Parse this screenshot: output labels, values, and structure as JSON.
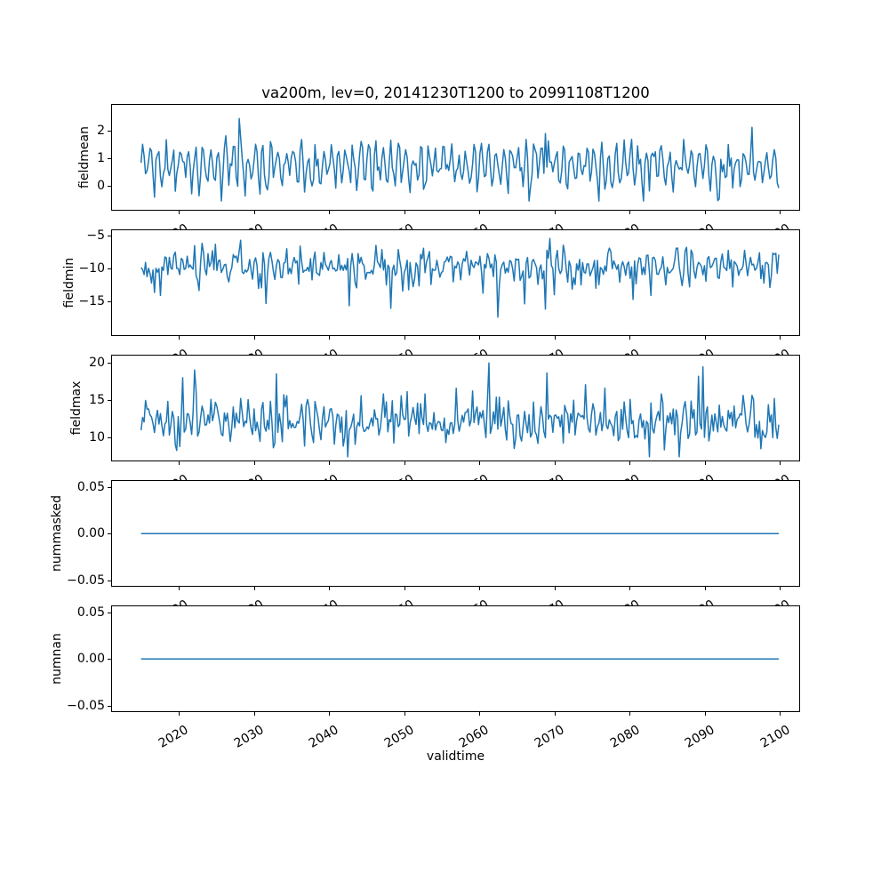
{
  "figure": {
    "title": "va200m, lev=0, 20141230T1200 to 20991108T1200",
    "background": "#ffffff",
    "line_color": "#1f77b4",
    "axis_color": "#000000",
    "text_color": "#000000"
  },
  "x_axis": {
    "label": "validtime",
    "lim": [
      2011.0,
      2102.7
    ],
    "data_start": 2014.99,
    "data_end": 2099.86,
    "ticks": [
      2020,
      2030,
      2040,
      2050,
      2060,
      2070,
      2080,
      2090,
      2100
    ],
    "tick_labels": [
      "2020",
      "2030",
      "2040",
      "2050",
      "2060",
      "2070",
      "2080",
      "2090",
      "2100"
    ],
    "tick_rotation_deg": 30
  },
  "chart_data": [
    {
      "type": "line",
      "ylabel": "fieldmean",
      "ylim": [
        -0.9,
        2.97
      ],
      "yticks": {
        "values": [
          0,
          1,
          2
        ],
        "labels": [
          "0",
          "1",
          "2"
        ]
      },
      "series": {
        "kind": "noisy-seasonal",
        "seed": 42,
        "n": 430,
        "base": 0.72,
        "seasonal_amp": 0.6,
        "noise_sd": 0.28,
        "spike_prob": 0.02,
        "spike_mag": [
          0.5,
          1.4
        ],
        "spike_sign": "both",
        "clip": [
          -0.55,
          2.72
        ]
      },
      "summary": {
        "approx_mean": 0.75,
        "approx_min": -0.5,
        "approx_max": 2.7
      }
    },
    {
      "type": "line",
      "ylabel": "fieldmin",
      "ylim": [
        -20.27,
        -4.05
      ],
      "yticks": {
        "values": [
          -5,
          -10,
          -15
        ],
        "labels": [
          "−5",
          "−10",
          "−15"
        ]
      },
      "series": {
        "kind": "noisy-seasonal",
        "seed": 7,
        "n": 430,
        "base": -9.55,
        "seasonal_amp": 1.15,
        "noise_sd": 1.25,
        "spike_prob": 0.05,
        "spike_mag": [
          1.5,
          6.5
        ],
        "spike_sign": "down",
        "clip": [
          -18.7,
          -5.15
        ]
      },
      "summary": {
        "approx_mean": -9.7,
        "approx_min": -18.5,
        "approx_max": -5.2
      }
    },
    {
      "type": "line",
      "ylabel": "fieldmax",
      "ylim": [
        6.78,
        21.07
      ],
      "yticks": {
        "values": [
          10,
          15,
          20
        ],
        "labels": [
          "10",
          "15",
          "20"
        ]
      },
      "series": {
        "kind": "noisy-seasonal",
        "seed": 1337,
        "n": 430,
        "base": 12.1,
        "seasonal_amp": 1.05,
        "noise_sd": 1.45,
        "spike_prob": 0.05,
        "spike_mag": [
          1.5,
          5.5
        ],
        "spike_sign": "up",
        "clip": [
          7.4,
          20.05
        ]
      },
      "summary": {
        "approx_mean": 12.1,
        "approx_min": 7.5,
        "approx_max": 20.0
      }
    },
    {
      "type": "line",
      "ylabel": "nummasked",
      "ylim": [
        -0.057,
        0.0576
      ],
      "yticks": {
        "values": [
          0.05,
          0,
          -0.05
        ],
        "labels": [
          "0.05",
          "0.00",
          "−0.05"
        ]
      },
      "series": {
        "kind": "constant",
        "value": 0.0
      }
    },
    {
      "type": "line",
      "ylabel": "numnan",
      "ylim": [
        -0.057,
        0.0576
      ],
      "yticks": {
        "values": [
          0.05,
          0,
          -0.05
        ],
        "labels": [
          "0.05",
          "0.00",
          "−0.05"
        ]
      },
      "series": {
        "kind": "constant",
        "value": 0.0
      }
    }
  ]
}
